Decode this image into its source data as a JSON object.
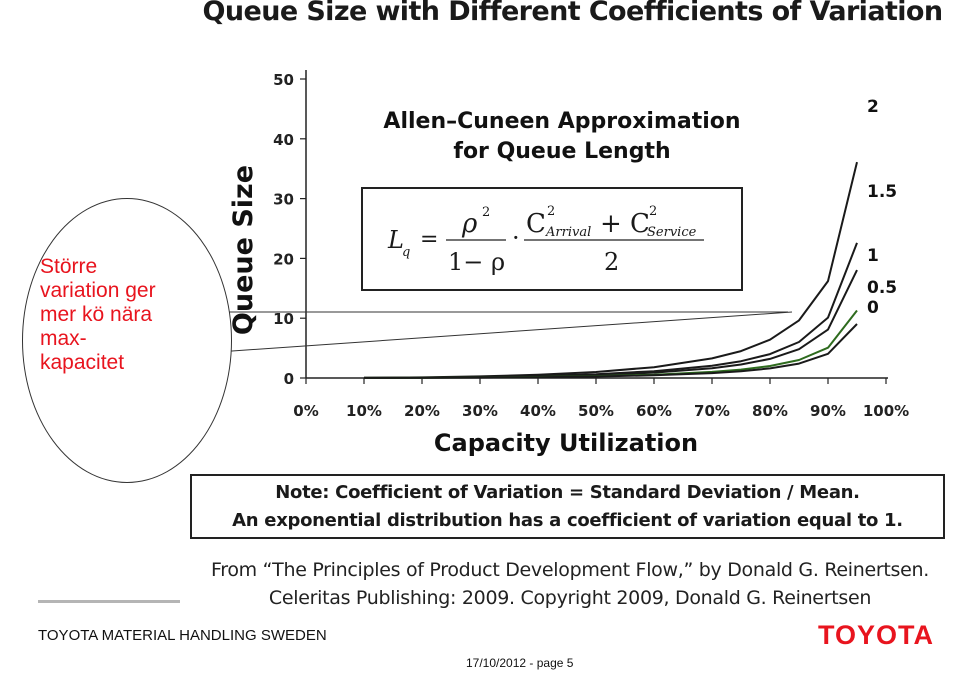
{
  "title": "Queue Size with Different Coefficients of Variation",
  "formula": {
    "title_line1": "Allen–Cuneen Approximation",
    "title_line2": "for Queue Length",
    "lhs": "L",
    "lhs_sub": "q",
    "equals": "=",
    "rho_num": "ρ",
    "rho_exp": "2",
    "rho_den": "1− ρ",
    "dot": "·",
    "c1": "C",
    "c1_exp": "2",
    "c1_sub": "Arrival",
    "plus": "+ C",
    "c2_exp": "2",
    "c2_sub": "Service",
    "den2": "2"
  },
  "callout_lines": [
    "Större",
    "variation ger",
    "mer kö nära",
    "max-",
    "kapacitet"
  ],
  "note": {
    "line1": "Note: Coefficient of Variation = Standard Deviation / Mean.",
    "line2": "An exponential distribution has a coefficient of variation equal to 1."
  },
  "source": {
    "line1": "From “The Principles of Product Development Flow,” by Donald G. Reinertsen.",
    "line2": "Celeritas Publishing: 2009. Copyright 2009, Donald G. Reinertsen"
  },
  "footer": {
    "company": "TOYOTA MATERIAL HANDLING SWEDEN",
    "logo_text": "TOYOTA",
    "date_page": "17/10/2012 - page 5"
  },
  "colors": {
    "callout_text": "#e8141e",
    "logo": "#e8141e",
    "series_default": "#1a1a1a",
    "series_0_5": "#2e6b1e"
  },
  "chart_data": {
    "type": "line",
    "xlabel": "Capacity Utilization",
    "ylabel": "Queue Size",
    "xlim": [
      0,
      100
    ],
    "ylim": [
      0,
      50
    ],
    "xticks": [
      "0%",
      "10%",
      "20%",
      "30%",
      "40%",
      "50%",
      "60%",
      "70%",
      "80%",
      "90%",
      "100%"
    ],
    "yticks": [
      "0",
      "10",
      "20",
      "30",
      "40",
      "50"
    ],
    "x": [
      10,
      20,
      30,
      40,
      50,
      60,
      70,
      75,
      80,
      85,
      90,
      95
    ],
    "series": [
      {
        "name": "2",
        "values": [
          0.02,
          0.1,
          0.26,
          0.53,
          1.0,
          1.8,
          3.27,
          4.5,
          6.4,
          9.63,
          16.2,
          36.1
        ]
      },
      {
        "name": "1.5",
        "values": [
          0.01,
          0.06,
          0.17,
          0.35,
          0.63,
          1.13,
          2.04,
          2.81,
          4.0,
          6.02,
          10.1,
          22.6
        ]
      },
      {
        "name": "1",
        "values": [
          0.01,
          0.05,
          0.13,
          0.27,
          0.5,
          0.9,
          1.63,
          2.25,
          3.2,
          4.82,
          8.1,
          18.05
        ]
      },
      {
        "name": "0.5",
        "values": [
          0.01,
          0.03,
          0.08,
          0.17,
          0.31,
          0.56,
          1.02,
          1.41,
          2.0,
          3.01,
          5.06,
          11.28
        ]
      },
      {
        "name": "0",
        "values": [
          0.01,
          0.03,
          0.06,
          0.13,
          0.25,
          0.45,
          0.82,
          1.13,
          1.6,
          2.41,
          4.05,
          9.03
        ]
      }
    ]
  }
}
